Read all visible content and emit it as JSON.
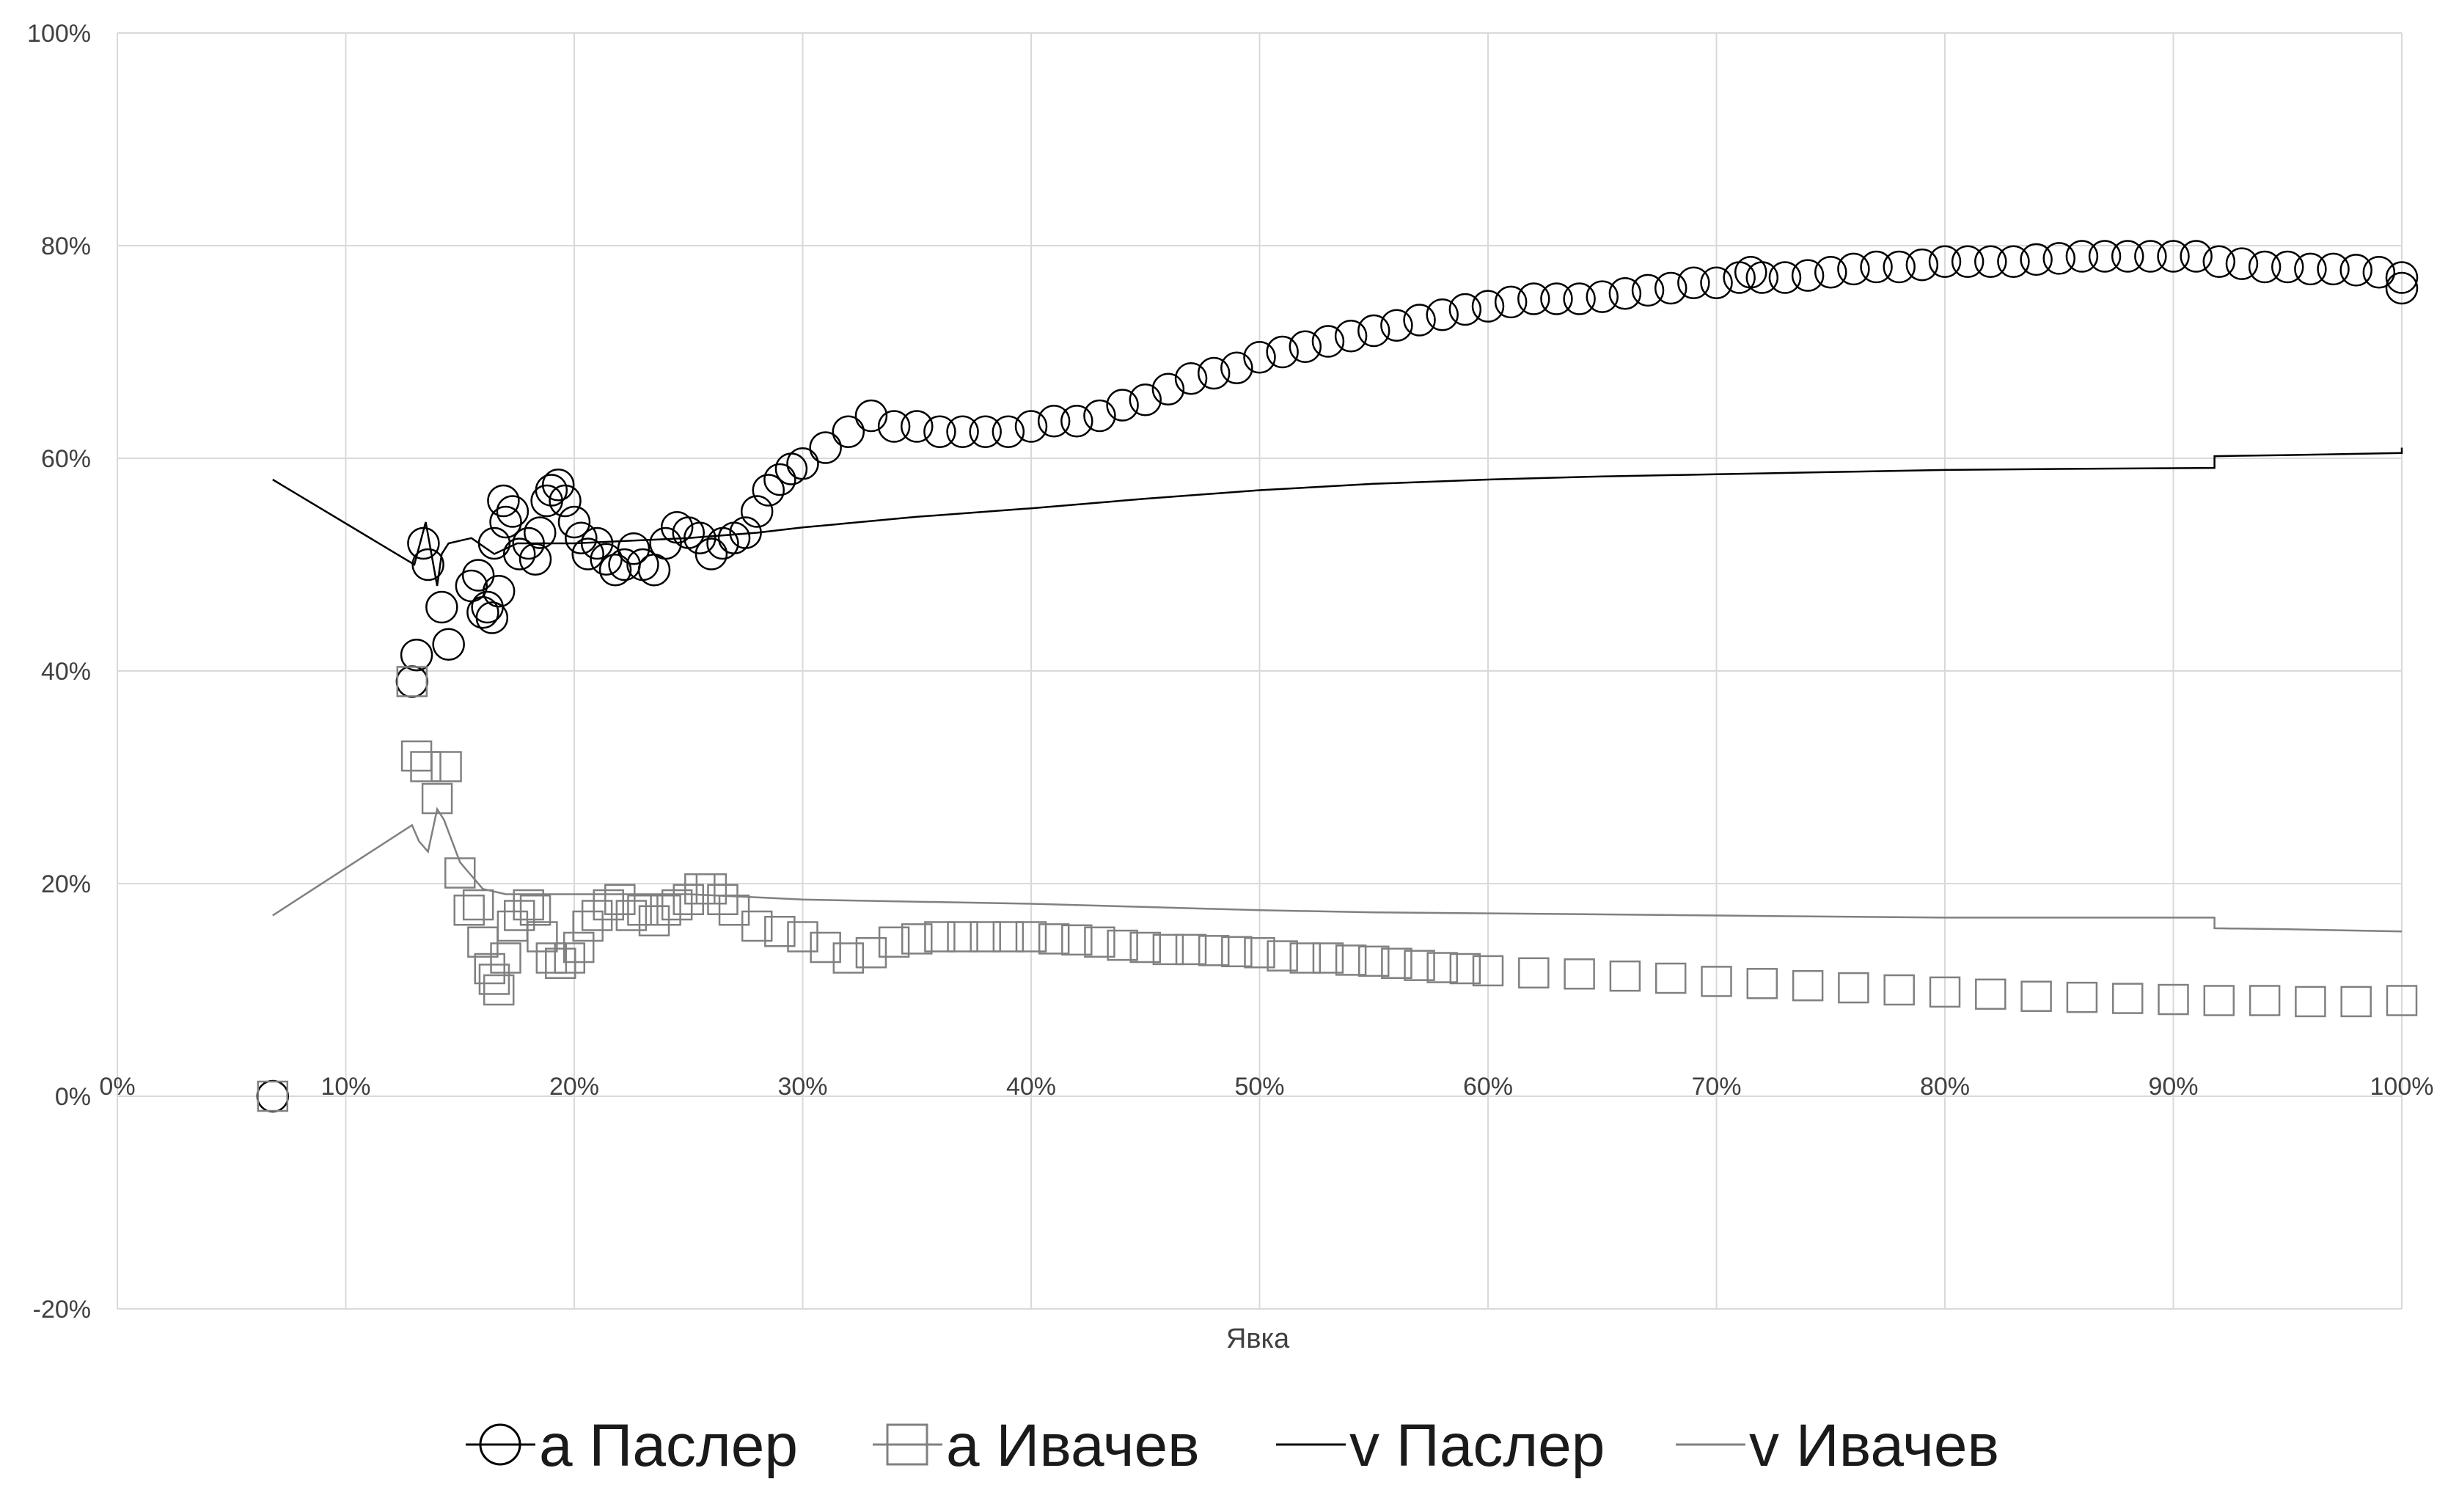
{
  "chart_data": {
    "type": "scatter",
    "title": "",
    "xlabel": "Явка",
    "ylabel": "",
    "xlim": [
      0,
      100
    ],
    "ylim": [
      -20,
      100
    ],
    "x_ticks": [
      "0%",
      "10%",
      "20%",
      "30%",
      "40%",
      "50%",
      "60%",
      "70%",
      "80%",
      "90%",
      "100%"
    ],
    "y_ticks": [
      "-20%",
      "0%",
      "20%",
      "40%",
      "60%",
      "80%",
      "100%"
    ],
    "grid": true,
    "legend_position": "bottom",
    "series": [
      {
        "name": "a Паслер",
        "kind": "markers",
        "marker": "circle",
        "color": "#000000",
        "points": [
          [
            6.8,
            0
          ],
          [
            12.9,
            39
          ],
          [
            13.1,
            41.5
          ],
          [
            13.4,
            52
          ],
          [
            13.6,
            50
          ],
          [
            14.2,
            46
          ],
          [
            14.5,
            42.5
          ],
          [
            15.5,
            48
          ],
          [
            15.8,
            49
          ],
          [
            16.0,
            45.5
          ],
          [
            16.2,
            46
          ],
          [
            16.4,
            45
          ],
          [
            16.5,
            52
          ],
          [
            16.7,
            47.5
          ],
          [
            16.9,
            56
          ],
          [
            17.0,
            54
          ],
          [
            17.3,
            55
          ],
          [
            17.6,
            51
          ],
          [
            18.0,
            52
          ],
          [
            18.3,
            50.5
          ],
          [
            18.5,
            53
          ],
          [
            18.8,
            56
          ],
          [
            19.0,
            57
          ],
          [
            19.3,
            57.5
          ],
          [
            19.6,
            56
          ],
          [
            20.0,
            54
          ],
          [
            20.3,
            52.5
          ],
          [
            20.6,
            51
          ],
          [
            21.0,
            52
          ],
          [
            21.4,
            50.5
          ],
          [
            21.8,
            49.5
          ],
          [
            22.2,
            50
          ],
          [
            22.6,
            51.5
          ],
          [
            23.0,
            50
          ],
          [
            23.5,
            49.5
          ],
          [
            24.0,
            52
          ],
          [
            24.5,
            53.5
          ],
          [
            25.0,
            53
          ],
          [
            25.5,
            52.5
          ],
          [
            26.0,
            51
          ],
          [
            26.5,
            52
          ],
          [
            27.0,
            52.5
          ],
          [
            27.5,
            53
          ],
          [
            28.0,
            55
          ],
          [
            28.5,
            57
          ],
          [
            29.0,
            58
          ],
          [
            29.5,
            59
          ],
          [
            30.0,
            59.5
          ],
          [
            31.0,
            61
          ],
          [
            32.0,
            62.5
          ],
          [
            33.0,
            64
          ],
          [
            34.0,
            63
          ],
          [
            35.0,
            63
          ],
          [
            36.0,
            62.5
          ],
          [
            37.0,
            62.5
          ],
          [
            38.0,
            62.5
          ],
          [
            39.0,
            62.5
          ],
          [
            40.0,
            63
          ],
          [
            41.0,
            63.5
          ],
          [
            42.0,
            63.5
          ],
          [
            43.0,
            64
          ],
          [
            44.0,
            65
          ],
          [
            45.0,
            65.5
          ],
          [
            46.0,
            66.5
          ],
          [
            47.0,
            67.5
          ],
          [
            48.0,
            68
          ],
          [
            49.0,
            68.5
          ],
          [
            50.0,
            69.5
          ],
          [
            51.0,
            70
          ],
          [
            52.0,
            70.5
          ],
          [
            53.0,
            71
          ],
          [
            54.0,
            71.5
          ],
          [
            55.0,
            72
          ],
          [
            56.0,
            72.5
          ],
          [
            57.0,
            73
          ],
          [
            58.0,
            73.5
          ],
          [
            59.0,
            74
          ],
          [
            60.0,
            74.3
          ],
          [
            61.0,
            74.7
          ],
          [
            62.0,
            75
          ],
          [
            63.0,
            75
          ],
          [
            64.0,
            75
          ],
          [
            65.0,
            75.2
          ],
          [
            66.0,
            75.5
          ],
          [
            67.0,
            75.8
          ],
          [
            68.0,
            76
          ],
          [
            69.0,
            76.5
          ],
          [
            70.0,
            76.5
          ],
          [
            71.0,
            77
          ],
          [
            71.5,
            77.5
          ],
          [
            72.0,
            77
          ],
          [
            73.0,
            77
          ],
          [
            74.0,
            77.2
          ],
          [
            75.0,
            77.5
          ],
          [
            76.0,
            77.8
          ],
          [
            77.0,
            78
          ],
          [
            78.0,
            78
          ],
          [
            79.0,
            78.2
          ],
          [
            80.0,
            78.5
          ],
          [
            81.0,
            78.5
          ],
          [
            82.0,
            78.5
          ],
          [
            83.0,
            78.5
          ],
          [
            84.0,
            78.7
          ],
          [
            85.0,
            78.8
          ],
          [
            86.0,
            79
          ],
          [
            87.0,
            79
          ],
          [
            88.0,
            79
          ],
          [
            89.0,
            79
          ],
          [
            90.0,
            79
          ],
          [
            91.0,
            79
          ],
          [
            92.0,
            78.5
          ],
          [
            93.0,
            78.3
          ],
          [
            94.0,
            78
          ],
          [
            95.0,
            78
          ],
          [
            96.0,
            77.8
          ],
          [
            97.0,
            77.8
          ],
          [
            98.0,
            77.7
          ],
          [
            99.0,
            77.5
          ],
          [
            100.0,
            77
          ],
          [
            100.0,
            76
          ]
        ]
      },
      {
        "name": "a Ивачев",
        "kind": "markers",
        "marker": "square",
        "color": "#808080",
        "points": [
          [
            6.8,
            0
          ],
          [
            12.9,
            39
          ],
          [
            13.1,
            32
          ],
          [
            13.5,
            31
          ],
          [
            14.0,
            28
          ],
          [
            14.4,
            31
          ],
          [
            15.0,
            21
          ],
          [
            15.4,
            17.5
          ],
          [
            15.8,
            18
          ],
          [
            16.0,
            14.5
          ],
          [
            16.3,
            12
          ],
          [
            16.5,
            11
          ],
          [
            16.7,
            10
          ],
          [
            17.0,
            13
          ],
          [
            17.3,
            16
          ],
          [
            17.6,
            17
          ],
          [
            18.0,
            18
          ],
          [
            18.3,
            17.5
          ],
          [
            18.6,
            15
          ],
          [
            19.0,
            13
          ],
          [
            19.4,
            12.5
          ],
          [
            19.8,
            13
          ],
          [
            20.2,
            14
          ],
          [
            20.6,
            16
          ],
          [
            21.0,
            17
          ],
          [
            21.5,
            18
          ],
          [
            22.0,
            18.5
          ],
          [
            22.5,
            17
          ],
          [
            23.0,
            17.5
          ],
          [
            23.5,
            16.5
          ],
          [
            24.0,
            17.5
          ],
          [
            24.5,
            18
          ],
          [
            25.0,
            18.5
          ],
          [
            25.5,
            19.5
          ],
          [
            26.0,
            19.5
          ],
          [
            26.5,
            18.5
          ],
          [
            27.0,
            17.5
          ],
          [
            28.0,
            16
          ],
          [
            29.0,
            15.5
          ],
          [
            30.0,
            15
          ],
          [
            31.0,
            14
          ],
          [
            32.0,
            13
          ],
          [
            33.0,
            13.5
          ],
          [
            34.0,
            14.5
          ],
          [
            35.0,
            14.8
          ],
          [
            36.0,
            15
          ],
          [
            37.0,
            15
          ],
          [
            38.0,
            15
          ],
          [
            39.0,
            15
          ],
          [
            40.0,
            15
          ],
          [
            41.0,
            14.8
          ],
          [
            42.0,
            14.7
          ],
          [
            43.0,
            14.5
          ],
          [
            44.0,
            14.2
          ],
          [
            45.0,
            14
          ],
          [
            46.0,
            13.8
          ],
          [
            47.0,
            13.8
          ],
          [
            48.0,
            13.7
          ],
          [
            49.0,
            13.6
          ],
          [
            50.0,
            13.5
          ],
          [
            51.0,
            13.2
          ],
          [
            52.0,
            13
          ],
          [
            53.0,
            13
          ],
          [
            54.0,
            12.8
          ],
          [
            55.0,
            12.7
          ],
          [
            56.0,
            12.5
          ],
          [
            57.0,
            12.3
          ],
          [
            58.0,
            12.1
          ],
          [
            59.0,
            12
          ],
          [
            60.0,
            11.8
          ],
          [
            62.0,
            11.6
          ],
          [
            64.0,
            11.5
          ],
          [
            66.0,
            11.3
          ],
          [
            68.0,
            11.1
          ],
          [
            70.0,
            10.8
          ],
          [
            72.0,
            10.6
          ],
          [
            74.0,
            10.4
          ],
          [
            76.0,
            10.2
          ],
          [
            78.0,
            10
          ],
          [
            80.0,
            9.8
          ],
          [
            82.0,
            9.6
          ],
          [
            84.0,
            9.4
          ],
          [
            86.0,
            9.3
          ],
          [
            88.0,
            9.2
          ],
          [
            90.0,
            9.1
          ],
          [
            92.0,
            9
          ],
          [
            94.0,
            9
          ],
          [
            96.0,
            8.9
          ],
          [
            98.0,
            8.9
          ],
          [
            100.0,
            9
          ]
        ]
      },
      {
        "name": "v Паслер",
        "kind": "line",
        "color": "#000000",
        "points": [
          [
            6.8,
            58
          ],
          [
            13.0,
            50
          ],
          [
            13.5,
            54
          ],
          [
            14.0,
            48
          ],
          [
            14.2,
            51
          ],
          [
            14.5,
            52
          ],
          [
            15.5,
            52.5
          ],
          [
            16.5,
            51
          ],
          [
            17.5,
            52
          ],
          [
            18.5,
            52
          ],
          [
            20.0,
            52
          ],
          [
            25.0,
            52.5
          ],
          [
            28.0,
            53
          ],
          [
            30.0,
            53.5
          ],
          [
            35.0,
            54.5
          ],
          [
            40.0,
            55.3
          ],
          [
            45.0,
            56.2
          ],
          [
            50.0,
            57
          ],
          [
            55.0,
            57.6
          ],
          [
            60.0,
            58
          ],
          [
            65.0,
            58.3
          ],
          [
            70.0,
            58.5
          ],
          [
            75.0,
            58.7
          ],
          [
            80.0,
            58.9
          ],
          [
            85.0,
            59
          ],
          [
            91.8,
            59.1
          ],
          [
            91.8,
            60.2
          ],
          [
            95.0,
            60.3
          ],
          [
            100.0,
            60.5
          ],
          [
            100.0,
            61
          ]
        ]
      },
      {
        "name": "v Ивачев",
        "kind": "line",
        "color": "#808080",
        "points": [
          [
            6.8,
            17
          ],
          [
            12.9,
            25.5
          ],
          [
            13.2,
            24
          ],
          [
            13.6,
            23
          ],
          [
            14.0,
            27
          ],
          [
            14.3,
            26
          ],
          [
            15.0,
            22
          ],
          [
            16.0,
            19.5
          ],
          [
            17.0,
            19
          ],
          [
            18.5,
            19
          ],
          [
            20.0,
            19
          ],
          [
            25.0,
            19
          ],
          [
            28.0,
            18.7
          ],
          [
            30.0,
            18.5
          ],
          [
            35.0,
            18.3
          ],
          [
            40.0,
            18.1
          ],
          [
            45.0,
            17.8
          ],
          [
            50.0,
            17.5
          ],
          [
            55.0,
            17.3
          ],
          [
            60.0,
            17.2
          ],
          [
            65.0,
            17.1
          ],
          [
            70.0,
            17
          ],
          [
            75.0,
            16.9
          ],
          [
            80.0,
            16.8
          ],
          [
            85.0,
            16.8
          ],
          [
            91.8,
            16.8
          ],
          [
            91.8,
            15.8
          ],
          [
            95.0,
            15.7
          ],
          [
            100.0,
            15.5
          ]
        ]
      }
    ]
  }
}
